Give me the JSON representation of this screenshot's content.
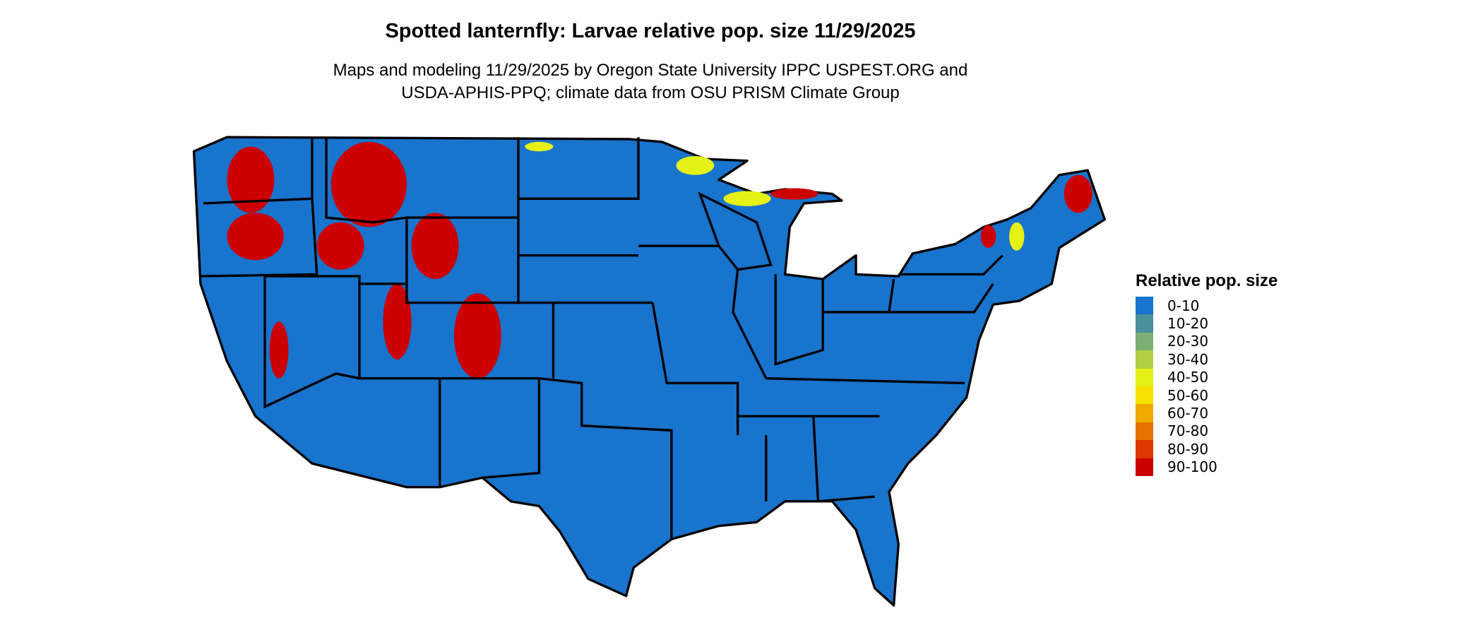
{
  "title": "Spotted lanternfly: Larvae relative pop. size 11/29/2025",
  "subtitle_line1": "Maps and modeling 11/29/2025 by Oregon State University IPPC USPEST.ORG and",
  "subtitle_line2": "USDA-APHIS-PPQ; climate data from OSU PRISM Climate Group",
  "legend": {
    "title": "Relative pop. size",
    "items": [
      {
        "label": "0-10",
        "color": "#1874cd"
      },
      {
        "label": "10-20",
        "color": "#4a8f9c"
      },
      {
        "label": "20-30",
        "color": "#7caf74"
      },
      {
        "label": "30-40",
        "color": "#b1d044"
      },
      {
        "label": "40-50",
        "color": "#e5f016"
      },
      {
        "label": "50-60",
        "color": "#f8e000"
      },
      {
        "label": "60-70",
        "color": "#eeaa00"
      },
      {
        "label": "70-80",
        "color": "#e47200"
      },
      {
        "label": "80-90",
        "color": "#dc3800"
      },
      {
        "label": "90-100",
        "color": "#cc0000"
      }
    ]
  }
}
